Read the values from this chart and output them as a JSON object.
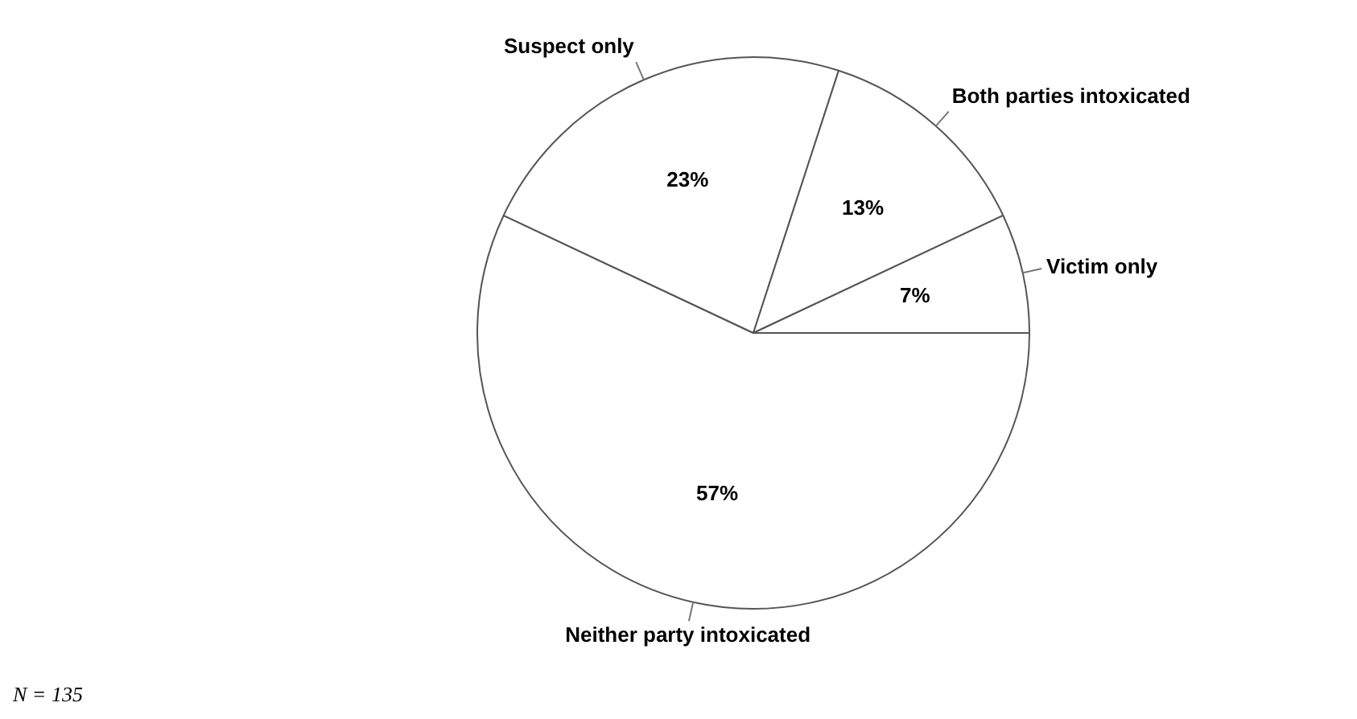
{
  "chart_data": {
    "type": "pie",
    "categories": [
      "Neither party intoxicated",
      "Suspect only",
      "Both parties intoxicated",
      "Victim only"
    ],
    "values": [
      57,
      23,
      13,
      7
    ],
    "colors": [
      "#ffffff",
      "#ffffff",
      "#ffffff",
      "#ffffff"
    ],
    "value_labels": [
      "57%",
      "23%",
      "13%",
      "7%"
    ],
    "legend": false,
    "annotations": [
      "N = 135"
    ]
  }
}
